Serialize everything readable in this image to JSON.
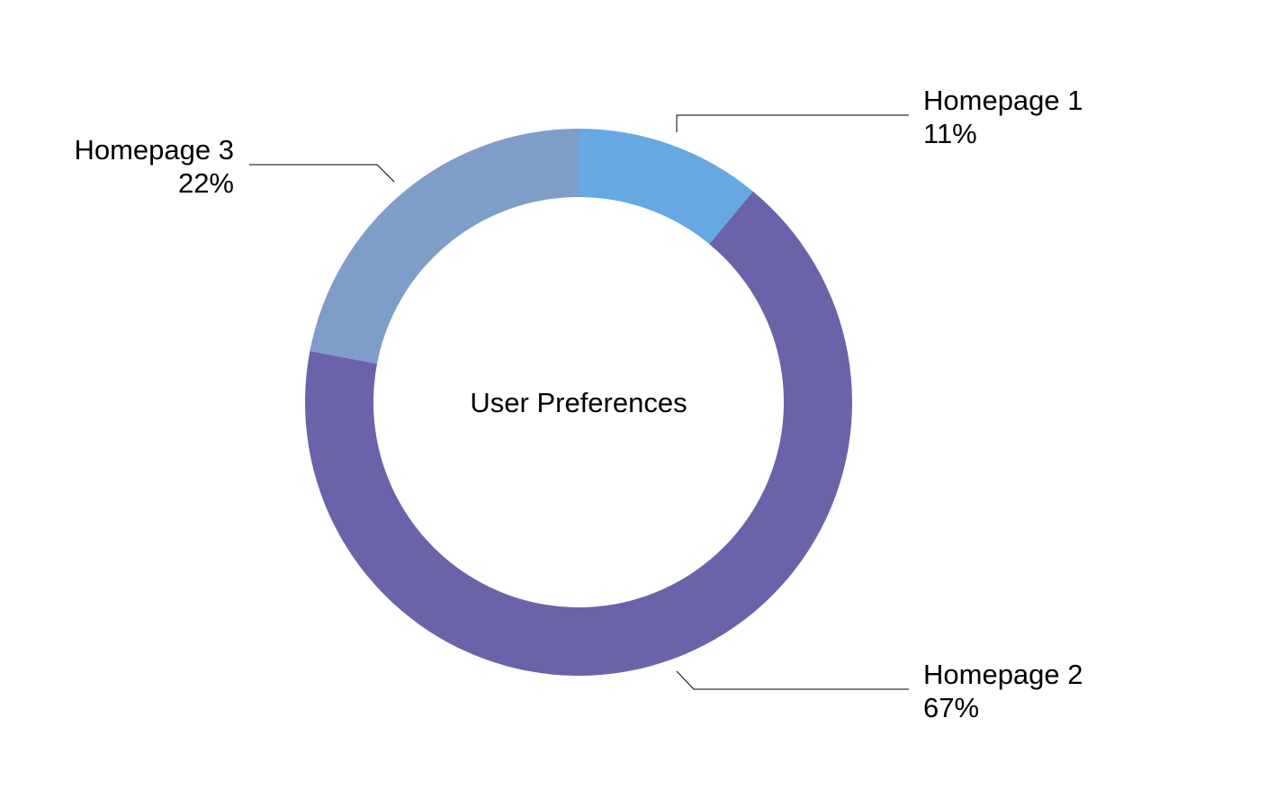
{
  "chart_data": {
    "type": "pie",
    "variant": "donut",
    "title": "User Preferences",
    "title_position": "center",
    "slices": [
      {
        "name": "Homepage 1",
        "value": 11,
        "label": "11%",
        "color": "#65a8e2"
      },
      {
        "name": "Homepage 2",
        "value": 67,
        "label": "67%",
        "color": "#6b63aa"
      },
      {
        "name": "Homepage 3",
        "value": 22,
        "label": "22%",
        "color": "#7f9dc9"
      }
    ],
    "start_angle": "top",
    "direction": "clockwise",
    "legend": "none"
  }
}
